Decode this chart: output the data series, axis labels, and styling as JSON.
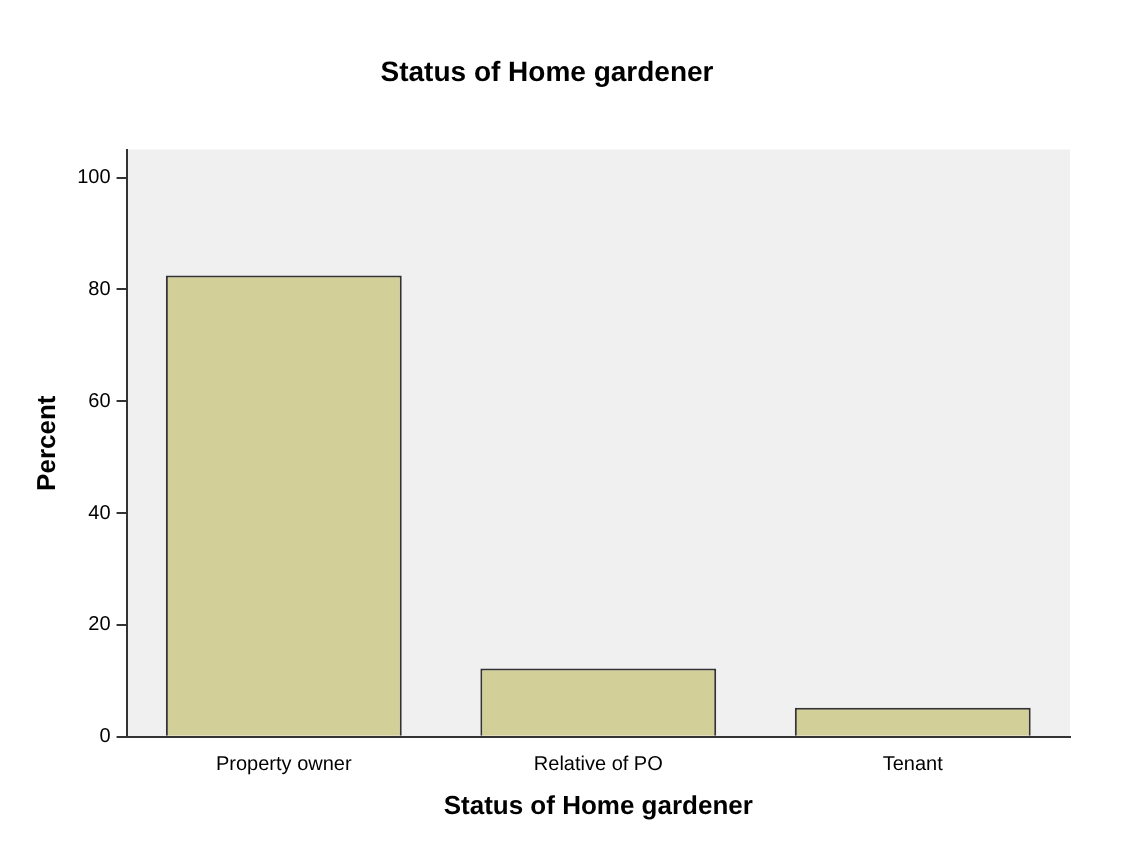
{
  "chart_data": {
    "type": "bar",
    "title": "Status of Home gardener",
    "xlabel": "Status of Home gardener",
    "ylabel": "Percent",
    "categories": [
      "Property owner",
      "Relative of PO",
      "Tenant"
    ],
    "values": [
      82.5,
      12.2,
      5.2
    ],
    "color": "#d3cf98",
    "ylim": [
      0,
      105
    ],
    "yticks": [
      0,
      20,
      40,
      60,
      80,
      100
    ],
    "grid": false,
    "legend": false
  }
}
